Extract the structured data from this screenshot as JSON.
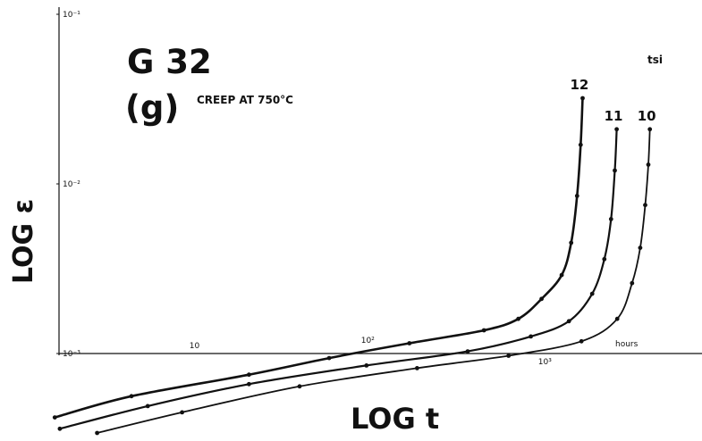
{
  "chart_data": {
    "type": "line",
    "title": "G 32",
    "panel_label": "(g)",
    "subtitle": "CREEP AT 750°C",
    "xlabel": "LOG t",
    "ylabel": "LOG ε",
    "x_unit_label": "hours",
    "legend_title": "tsi",
    "x_scale": "log",
    "y_scale": "log",
    "grid": false,
    "x_ticks": [
      {
        "value": 10,
        "label": "10"
      },
      {
        "value": 100,
        "label": "10²"
      },
      {
        "value": 1000,
        "label": "10³"
      }
    ],
    "y_ticks": [
      {
        "value": 0.001,
        "label": "10⁻³"
      },
      {
        "value": 0.01,
        "label": "10⁻²"
      },
      {
        "value": 0.1,
        "label": "10⁻¹"
      }
    ],
    "series": [
      {
        "name": "12",
        "points": [
          [
            1.4,
            0.00042
          ],
          [
            4,
            0.00056
          ],
          [
            20,
            0.00075
          ],
          [
            60,
            0.00094
          ],
          [
            180,
            0.00115
          ],
          [
            500,
            0.00137
          ],
          [
            800,
            0.0016
          ],
          [
            1100,
            0.0021
          ],
          [
            1450,
            0.0029
          ],
          [
            1650,
            0.0045
          ],
          [
            1790,
            0.0085
          ],
          [
            1880,
            0.017
          ],
          [
            1930,
            0.032
          ]
        ]
      },
      {
        "name": "11",
        "points": [
          [
            1.5,
            0.00036
          ],
          [
            5,
            0.00049
          ],
          [
            20,
            0.00066
          ],
          [
            100,
            0.00085
          ],
          [
            400,
            0.00103
          ],
          [
            950,
            0.00126
          ],
          [
            1600,
            0.00155
          ],
          [
            2200,
            0.00225
          ],
          [
            2600,
            0.0036
          ],
          [
            2850,
            0.0062
          ],
          [
            3000,
            0.012
          ],
          [
            3080,
            0.021
          ]
        ]
      },
      {
        "name": "10",
        "points": [
          [
            2.5,
            0.00034
          ],
          [
            8,
            0.00045
          ],
          [
            40,
            0.00064
          ],
          [
            200,
            0.00082
          ],
          [
            700,
            0.00097
          ],
          [
            1900,
            0.00118
          ],
          [
            3100,
            0.0016
          ],
          [
            3800,
            0.0026
          ],
          [
            4250,
            0.0042
          ],
          [
            4550,
            0.0075
          ],
          [
            4750,
            0.013
          ],
          [
            4850,
            0.021
          ]
        ]
      }
    ]
  }
}
